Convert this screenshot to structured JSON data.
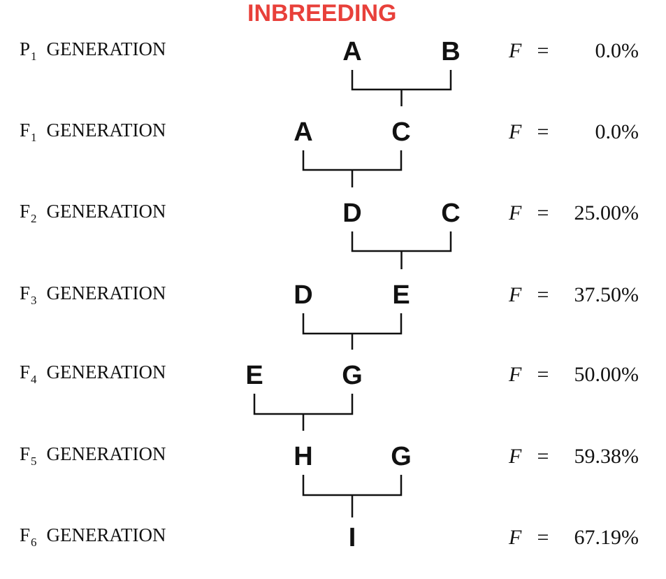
{
  "title": "INBREEDING",
  "generations": [
    {
      "symbol": "P",
      "subscript": "1",
      "suffix": "GENERATION",
      "nodes": [
        "A",
        "B"
      ],
      "f_symbol": "F",
      "equals": "=",
      "f_value": "0.0%"
    },
    {
      "symbol": "F",
      "subscript": "1",
      "suffix": "GENERATION",
      "nodes": [
        "A",
        "C"
      ],
      "f_symbol": "F",
      "equals": "=",
      "f_value": "0.0%"
    },
    {
      "symbol": "F",
      "subscript": "2",
      "suffix": "GENERATION",
      "nodes": [
        "D",
        "C"
      ],
      "f_symbol": "F",
      "equals": "=",
      "f_value": "25.00%"
    },
    {
      "symbol": "F",
      "subscript": "3",
      "suffix": "GENERATION",
      "nodes": [
        "D",
        "E"
      ],
      "f_symbol": "F",
      "equals": "=",
      "f_value": "37.50%"
    },
    {
      "symbol": "F",
      "subscript": "4",
      "suffix": "GENERATION",
      "nodes": [
        "E",
        "G"
      ],
      "f_symbol": "F",
      "equals": "=",
      "f_value": "50.00%"
    },
    {
      "symbol": "F",
      "subscript": "5",
      "suffix": "GENERATION",
      "nodes": [
        "H",
        "G"
      ],
      "f_symbol": "F",
      "equals": "=",
      "f_value": "59.38%"
    },
    {
      "symbol": "F",
      "subscript": "6",
      "suffix": "GENERATION",
      "nodes": [
        "I"
      ],
      "f_symbol": "F",
      "equals": "=",
      "f_value": "67.19%"
    }
  ]
}
